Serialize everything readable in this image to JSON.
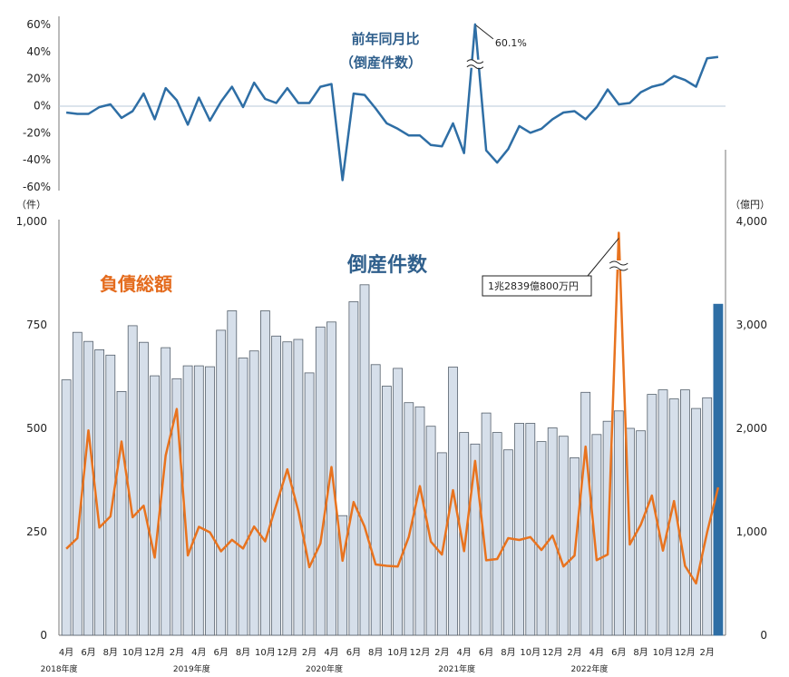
{
  "chart_data": [
    {
      "type": "line",
      "title": "前年同月比",
      "subtitle": "（倒産件数）",
      "ylim": [
        -60,
        60
      ],
      "yticks": [
        "60%",
        "40%",
        "20%",
        "0%",
        "-20%",
        "-40%",
        "-60%"
      ],
      "color": "#2e6ea5",
      "annotation": "60.1%",
      "series": [
        {
          "name": "前年同月比",
          "values": [
            -5,
            -6,
            -6,
            -1,
            1,
            -9,
            -4,
            9,
            -10,
            13,
            4,
            -14,
            6,
            -11,
            3,
            14,
            -1,
            17,
            5,
            2,
            13,
            2,
            2,
            14,
            16,
            -55,
            9,
            8,
            -2,
            -13,
            -17,
            -22,
            -22,
            -29,
            -30,
            -13,
            -35,
            60.1,
            -33,
            -42,
            -32,
            -15,
            -20,
            -17,
            -10,
            -5,
            -4,
            -10,
            -1,
            12,
            1,
            2,
            10,
            14,
            16,
            22,
            19,
            14,
            35,
            36
          ]
        }
      ]
    },
    {
      "type": "bar",
      "title": "倒産件数",
      "ylabel_left": "（件）",
      "ylabel_right": "（億円）",
      "ylim": [
        0,
        1000
      ],
      "yticks_left": [
        "0",
        "250",
        "500",
        "750",
        "1,000"
      ],
      "ylim_right": [
        0,
        4000
      ],
      "yticks_right": [
        "0",
        "1,000",
        "2,000",
        "3,000",
        "4,000"
      ],
      "bar_color": "#d6dfea",
      "bar_highlight_color": "#2e6ea5",
      "series": [
        {
          "name": "倒産件数",
          "values": [
            617,
            732,
            710,
            690,
            677,
            589,
            748,
            708,
            627,
            695,
            620,
            651,
            651,
            649,
            737,
            784,
            670,
            687,
            784,
            723,
            709,
            715,
            634,
            745,
            757,
            289,
            806,
            847,
            654,
            602,
            645,
            562,
            552,
            505,
            441,
            648,
            490,
            462,
            537,
            490,
            448,
            512,
            512,
            468,
            501,
            481,
            429,
            587,
            485,
            517,
            542,
            500,
            494,
            582,
            593,
            571,
            593,
            548,
            574,
            800
          ]
        },
        {
          "name": "負債総額",
          "color": "#e8731f",
          "annotation": "1兆2839億800万円",
          "values": [
            836,
            939,
            1981,
            1041,
            1149,
            1873,
            1140,
            1252,
            751,
            1739,
            2187,
            772,
            1048,
            995,
            811,
            923,
            839,
            1051,
            908,
            1260,
            1604,
            1203,
            658,
            888,
            1626,
            720,
            1288,
            1050,
            684,
            671,
            665,
            953,
            1441,
            905,
            780,
            1403,
            813,
            1685,
            725,
            737,
            939,
            921,
            949,
            824,
            963,
            665,
            770,
            1824,
            726,
            781,
            3890,
            877,
            1069,
            1350,
            818,
            1297,
            670,
            502,
            995,
            1429
          ]
        }
      ],
      "x_month_labels": [
        "4月",
        "6月",
        "8月",
        "10月",
        "12月",
        "2月",
        "4月",
        "6月",
        "8月",
        "10月",
        "12月",
        "2月",
        "4月",
        "6月",
        "8月",
        "10月",
        "12月",
        "2月",
        "4月",
        "6月",
        "8月",
        "10月",
        "12月",
        "2月",
        "4月",
        "6月",
        "8月",
        "10月",
        "12月",
        "2月"
      ],
      "x_year_labels": [
        "2018年度",
        "2019年度",
        "2020年度",
        "2021年度",
        "2022年度"
      ]
    }
  ]
}
